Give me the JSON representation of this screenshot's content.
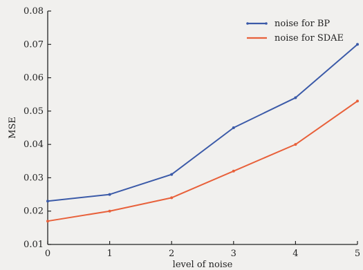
{
  "chart_data": {
    "type": "line",
    "title": "",
    "xlabel": "level of noise",
    "ylabel": "MSE",
    "x": [
      0,
      1,
      2,
      3,
      4,
      5
    ],
    "xlim": [
      0,
      5
    ],
    "ylim": [
      0.01,
      0.08
    ],
    "x_ticks": [
      "0",
      "1",
      "2",
      "3",
      "4",
      "5"
    ],
    "y_ticks": [
      "0.01",
      "0.02",
      "0.03",
      "0.04",
      "0.05",
      "0.06",
      "0.07",
      "0.08"
    ],
    "grid": false,
    "legend_position": "top-right",
    "series": [
      {
        "name": "noise for BP",
        "color": "#3b5aa8",
        "values": [
          0.023,
          0.025,
          0.031,
          0.045,
          0.054,
          0.07
        ]
      },
      {
        "name": "noise for SDAE",
        "color": "#e8603a",
        "values": [
          0.017,
          0.02,
          0.024,
          0.032,
          0.04,
          0.053
        ]
      }
    ]
  }
}
